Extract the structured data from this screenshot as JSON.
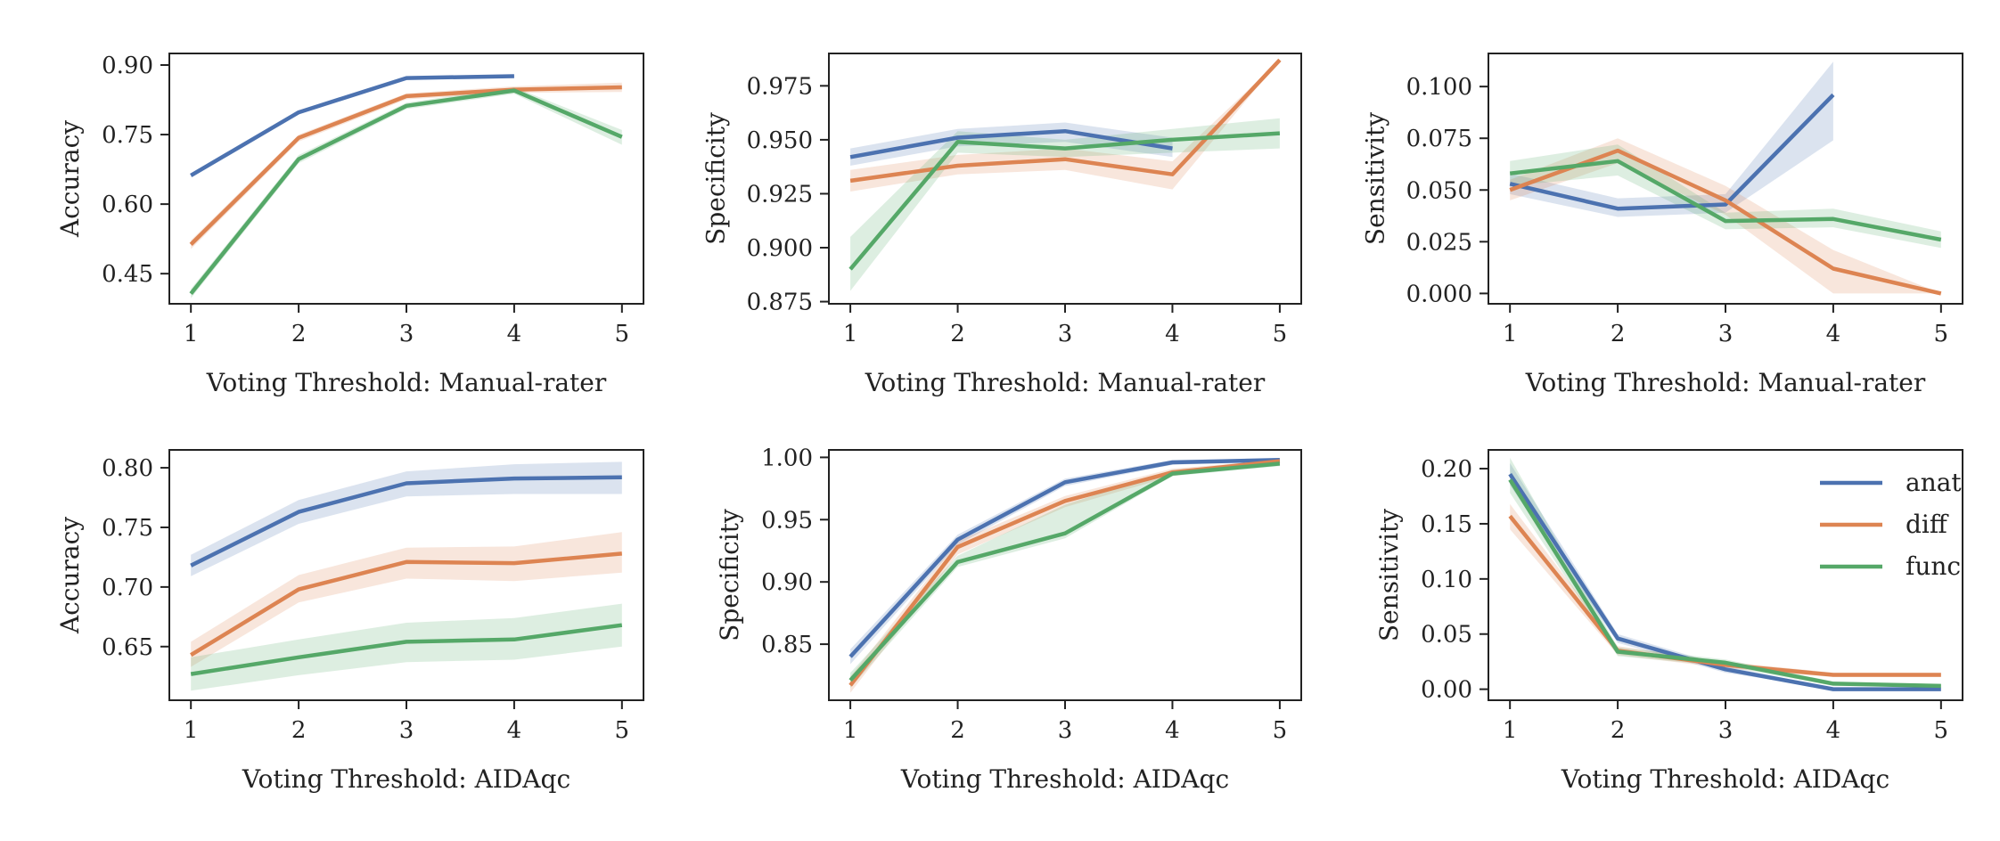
{
  "colors": {
    "anat": "#4c72b0",
    "diff": "#dd8452",
    "func": "#55a868",
    "axis": "#222222",
    "background": "#ffffff"
  },
  "chart_data": [
    {
      "type": "line",
      "xlabel": "Voting Threshold: Manual-rater",
      "ylabel": "Accuracy",
      "xlim": [
        0.8,
        5.2
      ],
      "ylim": [
        0.385,
        0.925
      ],
      "xticks": [
        1,
        2,
        3,
        4,
        5
      ],
      "xtick_labels": [
        "1",
        "2",
        "3",
        "4",
        "5"
      ],
      "yticks": [
        0.45,
        0.6,
        0.75,
        0.9
      ],
      "ytick_labels": [
        "0.45",
        "0.60",
        "0.75",
        "0.90"
      ],
      "grid": false,
      "series": [
        {
          "name": "anat",
          "color": "#4c72b0",
          "x": [
            1,
            2,
            3,
            4
          ],
          "values": [
            0.662,
            0.798,
            0.872,
            0.876
          ],
          "lower": [
            0.658,
            0.795,
            0.869,
            0.873
          ],
          "upper": [
            0.666,
            0.802,
            0.875,
            0.879
          ]
        },
        {
          "name": "diff",
          "color": "#dd8452",
          "x": [
            1,
            2,
            3,
            4,
            5
          ],
          "values": [
            0.513,
            0.743,
            0.833,
            0.847,
            0.852
          ],
          "lower": [
            0.503,
            0.735,
            0.826,
            0.84,
            0.842
          ],
          "upper": [
            0.522,
            0.75,
            0.839,
            0.854,
            0.862
          ]
        },
        {
          "name": "func",
          "color": "#55a868",
          "x": [
            1,
            2,
            3,
            4,
            5
          ],
          "values": [
            0.407,
            0.697,
            0.812,
            0.845,
            0.745
          ],
          "lower": [
            0.397,
            0.688,
            0.805,
            0.838,
            0.728
          ],
          "upper": [
            0.417,
            0.706,
            0.819,
            0.852,
            0.76
          ]
        }
      ],
      "legend": null
    },
    {
      "type": "line",
      "xlabel": "Voting Threshold: Manual-rater",
      "ylabel": "Specificity",
      "xlim": [
        0.8,
        5.2
      ],
      "ylim": [
        0.874,
        0.99
      ],
      "xticks": [
        1,
        2,
        3,
        4,
        5
      ],
      "xtick_labels": [
        "1",
        "2",
        "3",
        "4",
        "5"
      ],
      "yticks": [
        0.875,
        0.9,
        0.925,
        0.95,
        0.975
      ],
      "ytick_labels": [
        "0.875",
        "0.900",
        "0.925",
        "0.950",
        "0.975"
      ],
      "grid": false,
      "series": [
        {
          "name": "anat",
          "color": "#4c72b0",
          "x": [
            1,
            2,
            3,
            4
          ],
          "values": [
            0.942,
            0.951,
            0.954,
            0.946
          ],
          "lower": [
            0.938,
            0.947,
            0.949,
            0.942
          ],
          "upper": [
            0.946,
            0.955,
            0.958,
            0.951
          ]
        },
        {
          "name": "diff",
          "color": "#dd8452",
          "x": [
            1,
            2,
            3,
            4,
            5
          ],
          "values": [
            0.931,
            0.938,
            0.941,
            0.934,
            0.987
          ],
          "lower": [
            0.926,
            0.934,
            0.936,
            0.927,
            0.987
          ],
          "upper": [
            0.936,
            0.943,
            0.946,
            0.94,
            0.987
          ]
        },
        {
          "name": "func",
          "color": "#55a868",
          "x": [
            1,
            2,
            3,
            4,
            5
          ],
          "values": [
            0.89,
            0.949,
            0.946,
            0.95,
            0.953
          ],
          "lower": [
            0.88,
            0.944,
            0.942,
            0.944,
            0.946
          ],
          "upper": [
            0.905,
            0.954,
            0.95,
            0.955,
            0.96
          ]
        }
      ],
      "legend": null
    },
    {
      "type": "line",
      "xlabel": "Voting Threshold: Manual-rater",
      "ylabel": "Sensitivity",
      "xlim": [
        0.8,
        5.2
      ],
      "ylim": [
        -0.005,
        0.116
      ],
      "xticks": [
        1,
        2,
        3,
        4,
        5
      ],
      "xtick_labels": [
        "1",
        "2",
        "3",
        "4",
        "5"
      ],
      "yticks": [
        0.0,
        0.025,
        0.05,
        0.075,
        0.1
      ],
      "ytick_labels": [
        "0.000",
        "0.025",
        "0.050",
        "0.075",
        "0.100"
      ],
      "grid": false,
      "series": [
        {
          "name": "anat",
          "color": "#4c72b0",
          "x": [
            1,
            2,
            3,
            4
          ],
          "values": [
            0.053,
            0.041,
            0.043,
            0.096
          ],
          "lower": [
            0.048,
            0.037,
            0.039,
            0.074
          ],
          "upper": [
            0.058,
            0.046,
            0.048,
            0.112
          ]
        },
        {
          "name": "diff",
          "color": "#dd8452",
          "x": [
            1,
            2,
            3,
            4,
            5
          ],
          "values": [
            0.05,
            0.069,
            0.045,
            0.012,
            0.0
          ],
          "lower": [
            0.045,
            0.063,
            0.038,
            0.0,
            0.0
          ],
          "upper": [
            0.055,
            0.075,
            0.052,
            0.021,
            0.0
          ]
        },
        {
          "name": "func",
          "color": "#55a868",
          "x": [
            1,
            2,
            3,
            4,
            5
          ],
          "values": [
            0.058,
            0.064,
            0.035,
            0.036,
            0.026
          ],
          "lower": [
            0.052,
            0.057,
            0.031,
            0.032,
            0.022
          ],
          "upper": [
            0.064,
            0.072,
            0.039,
            0.041,
            0.03
          ]
        }
      ],
      "legend": null
    },
    {
      "type": "line",
      "xlabel": "Voting Threshold: AIDAqc",
      "ylabel": "Accuracy",
      "xlim": [
        0.8,
        5.2
      ],
      "ylim": [
        0.605,
        0.815
      ],
      "xticks": [
        1,
        2,
        3,
        4,
        5
      ],
      "xtick_labels": [
        "1",
        "2",
        "3",
        "4",
        "5"
      ],
      "yticks": [
        0.65,
        0.7,
        0.75,
        0.8
      ],
      "ytick_labels": [
        "0.65",
        "0.70",
        "0.75",
        "0.80"
      ],
      "grid": false,
      "series": [
        {
          "name": "anat",
          "color": "#4c72b0",
          "x": [
            1,
            2,
            3,
            4,
            5
          ],
          "values": [
            0.718,
            0.763,
            0.787,
            0.791,
            0.792
          ],
          "lower": [
            0.709,
            0.753,
            0.776,
            0.778,
            0.778
          ],
          "upper": [
            0.727,
            0.773,
            0.797,
            0.803,
            0.805
          ]
        },
        {
          "name": "diff",
          "color": "#dd8452",
          "x": [
            1,
            2,
            3,
            4,
            5
          ],
          "values": [
            0.643,
            0.698,
            0.721,
            0.72,
            0.728
          ],
          "lower": [
            0.633,
            0.687,
            0.707,
            0.705,
            0.712
          ],
          "upper": [
            0.654,
            0.71,
            0.733,
            0.734,
            0.746
          ]
        },
        {
          "name": "func",
          "color": "#55a868",
          "x": [
            1,
            2,
            3,
            4,
            5
          ],
          "values": [
            0.627,
            0.641,
            0.654,
            0.656,
            0.668
          ],
          "lower": [
            0.613,
            0.626,
            0.637,
            0.639,
            0.65
          ],
          "upper": [
            0.641,
            0.656,
            0.67,
            0.674,
            0.686
          ]
        }
      ],
      "legend": null
    },
    {
      "type": "line",
      "xlabel": "Voting Threshold: AIDAqc",
      "ylabel": "Specificity",
      "xlim": [
        0.8,
        5.2
      ],
      "ylim": [
        0.805,
        1.006
      ],
      "xticks": [
        1,
        2,
        3,
        4,
        5
      ],
      "xtick_labels": [
        "1",
        "2",
        "3",
        "4",
        "5"
      ],
      "yticks": [
        0.85,
        0.9,
        0.95,
        1.0
      ],
      "ytick_labels": [
        "0.85",
        "0.90",
        "0.95",
        "1.00"
      ],
      "grid": false,
      "series": [
        {
          "name": "anat",
          "color": "#4c72b0",
          "x": [
            1,
            2,
            3,
            4,
            5
          ],
          "values": [
            0.84,
            0.934,
            0.98,
            0.996,
            0.998
          ],
          "lower": [
            0.834,
            0.93,
            0.977,
            0.994,
            0.997
          ],
          "upper": [
            0.846,
            0.938,
            0.983,
            0.998,
            0.999
          ]
        },
        {
          "name": "diff",
          "color": "#dd8452",
          "x": [
            1,
            2,
            3,
            4,
            5
          ],
          "values": [
            0.817,
            0.928,
            0.965,
            0.988,
            0.997
          ],
          "lower": [
            0.811,
            0.922,
            0.96,
            0.985,
            0.996
          ],
          "upper": [
            0.824,
            0.933,
            0.969,
            0.991,
            0.998
          ]
        },
        {
          "name": "func",
          "color": "#55a868",
          "x": [
            1,
            2,
            3,
            4,
            5
          ],
          "values": [
            0.821,
            0.916,
            0.939,
            0.987,
            0.995
          ],
          "lower": [
            0.815,
            0.912,
            0.935,
            0.985,
            0.993
          ],
          "upper": [
            0.827,
            0.921,
            0.962,
            0.99,
            0.997
          ]
        }
      ],
      "legend": null
    },
    {
      "type": "line",
      "xlabel": "Voting Threshold: AIDAqc",
      "ylabel": "Sensitivity",
      "xlim": [
        0.8,
        5.2
      ],
      "ylim": [
        -0.01,
        0.217
      ],
      "xticks": [
        1,
        2,
        3,
        4,
        5
      ],
      "xtick_labels": [
        "1",
        "2",
        "3",
        "4",
        "5"
      ],
      "yticks": [
        0.0,
        0.05,
        0.1,
        0.15,
        0.2
      ],
      "ytick_labels": [
        "0.00",
        "0.05",
        "0.10",
        "0.15",
        "0.20"
      ],
      "grid": false,
      "series": [
        {
          "name": "anat",
          "color": "#4c72b0",
          "x": [
            1,
            2,
            3,
            4,
            5
          ],
          "values": [
            0.195,
            0.046,
            0.018,
            0.0,
            0.0
          ],
          "lower": [
            0.185,
            0.042,
            0.015,
            0.0,
            0.0
          ],
          "upper": [
            0.205,
            0.05,
            0.021,
            0.001,
            0.001
          ]
        },
        {
          "name": "diff",
          "color": "#dd8452",
          "x": [
            1,
            2,
            3,
            4,
            5
          ],
          "values": [
            0.157,
            0.035,
            0.022,
            0.013,
            0.013
          ],
          "lower": [
            0.145,
            0.031,
            0.019,
            0.011,
            0.011
          ],
          "upper": [
            0.168,
            0.039,
            0.025,
            0.015,
            0.015
          ]
        },
        {
          "name": "func",
          "color": "#55a868",
          "x": [
            1,
            2,
            3,
            4,
            5
          ],
          "values": [
            0.19,
            0.034,
            0.024,
            0.005,
            0.003
          ],
          "lower": [
            0.178,
            0.03,
            0.021,
            0.003,
            0.002
          ],
          "upper": [
            0.21,
            0.038,
            0.027,
            0.007,
            0.004
          ]
        }
      ],
      "legend": {
        "placement": "top-right",
        "entries": [
          {
            "label": "anat",
            "color": "#4c72b0"
          },
          {
            "label": "diff",
            "color": "#dd8452"
          },
          {
            "label": "func",
            "color": "#55a868"
          }
        ]
      }
    }
  ]
}
